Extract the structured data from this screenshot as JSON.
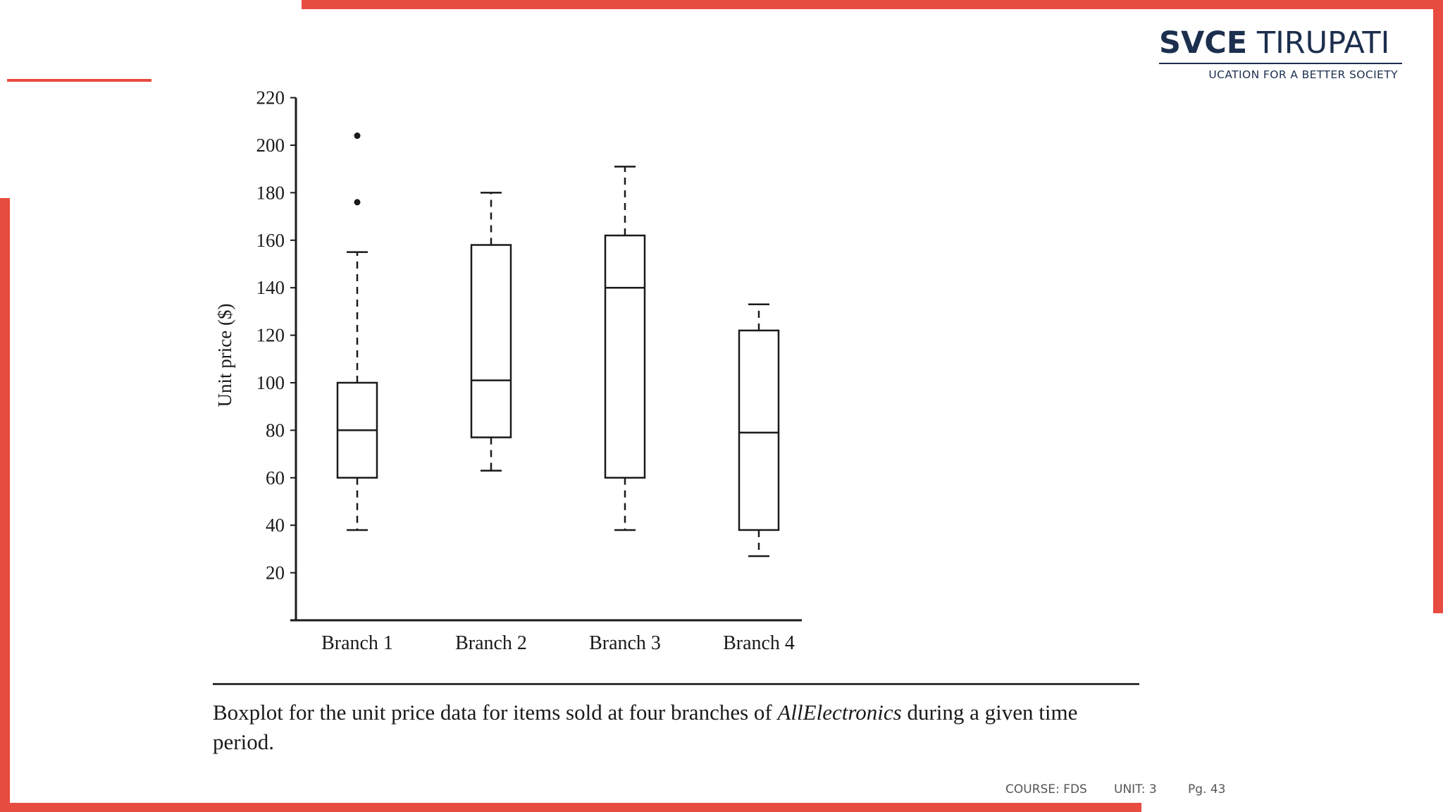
{
  "logo": {
    "brand_bold": "SVCE",
    "brand_light": "TIRUPATI",
    "tagline": "UCATION FOR A BETTER SOCIETY"
  },
  "colors": {
    "accent_red": "#e84b3f",
    "brand_navy": "#1c2f4e"
  },
  "chart_data": {
    "type": "boxplot",
    "ylabel": "Unit price ($)",
    "xlabel": "",
    "ylim": [
      0,
      220
    ],
    "yticks": [
      20,
      40,
      60,
      80,
      100,
      120,
      140,
      160,
      180,
      200,
      220
    ],
    "grid": false,
    "categories": [
      "Branch 1",
      "Branch 2",
      "Branch 3",
      "Branch 4"
    ],
    "boxes": [
      {
        "category": "Branch 1",
        "whisker_low": 38,
        "q1": 60,
        "median": 80,
        "q3": 100,
        "whisker_high": 155,
        "outliers": [
          176,
          204
        ]
      },
      {
        "category": "Branch 2",
        "whisker_low": 63,
        "q1": 77,
        "median": 101,
        "q3": 158,
        "whisker_high": 180,
        "outliers": []
      },
      {
        "category": "Branch 3",
        "whisker_low": 38,
        "q1": 60,
        "median": 140,
        "q3": 162,
        "whisker_high": 191,
        "outliers": []
      },
      {
        "category": "Branch 4",
        "whisker_low": 27,
        "q1": 38,
        "median": 79,
        "q3": 122,
        "whisker_high": 133,
        "outliers": []
      }
    ]
  },
  "caption": {
    "text_before": "Boxplot for the unit price data for items sold at four branches of ",
    "italic": "AllElectronics",
    "text_after": " during a given time period."
  },
  "footer": {
    "course": "COURSE: FDS",
    "unit": "UNIT: 3",
    "page": "Pg. 43"
  }
}
